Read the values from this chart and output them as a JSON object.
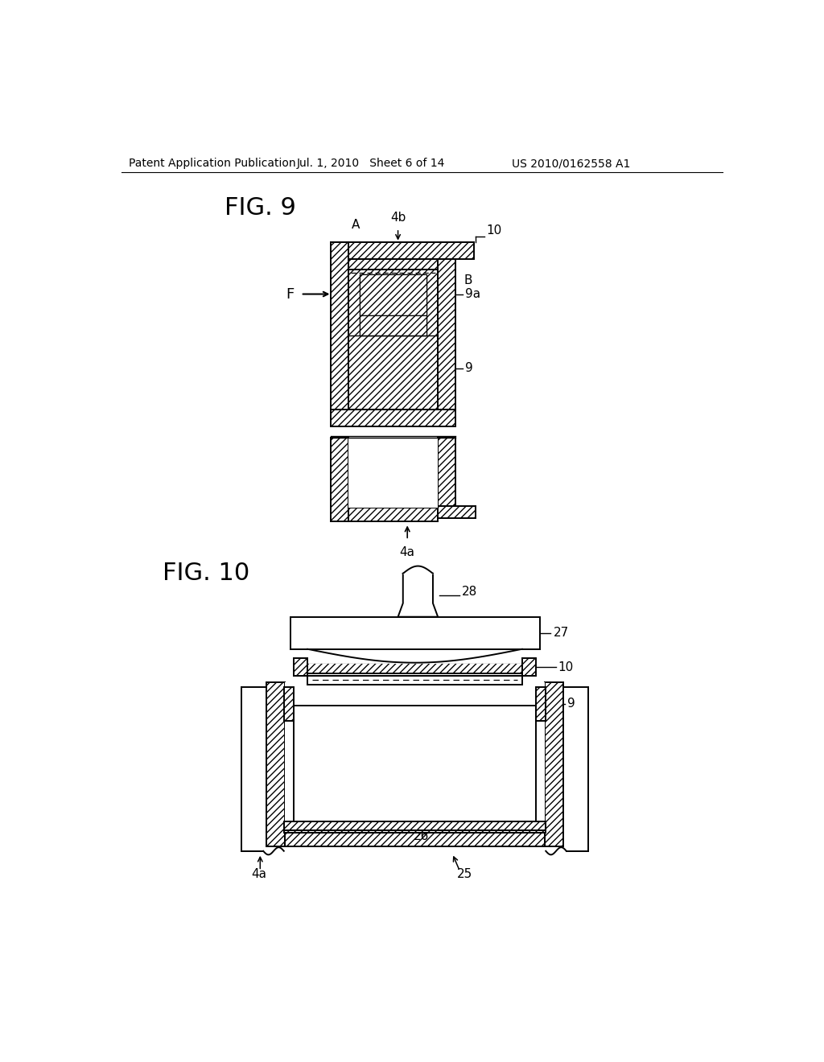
{
  "background_color": "#ffffff",
  "header_left": "Patent Application Publication",
  "header_mid": "Jul. 1, 2010   Sheet 6 of 14",
  "header_right": "US 2010/0162558 A1",
  "fig9_label": "FIG. 9",
  "fig10_label": "FIG. 10"
}
